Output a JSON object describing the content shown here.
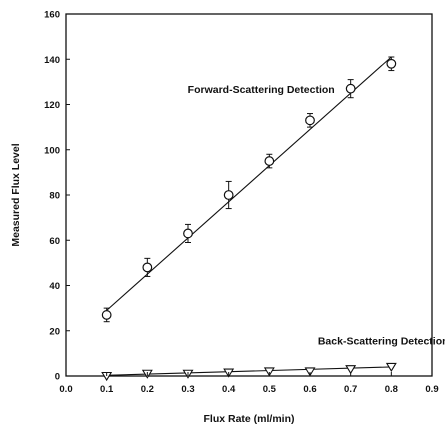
{
  "chart_data": {
    "type": "scatter",
    "xlabel": "Flux Rate (ml/min)",
    "ylabel": "Measured Flux Level",
    "xlim": [
      0.0,
      0.9
    ],
    "ylim": [
      0,
      160
    ],
    "xticks": [
      "0.0",
      "0.1",
      "0.2",
      "0.3",
      "0.4",
      "0.5",
      "0.6",
      "0.7",
      "0.8",
      "0.9"
    ],
    "yticks": [
      "0",
      "20",
      "40",
      "60",
      "80",
      "100",
      "120",
      "140",
      "160"
    ],
    "grid": false,
    "legend": "none",
    "series": [
      {
        "marker": "circle",
        "fit_line": {
          "x": [
            0.1,
            0.8
          ],
          "y": [
            29,
            141
          ]
        },
        "points": [
          {
            "x": 0.1,
            "y": 27,
            "err": 3
          },
          {
            "x": 0.2,
            "y": 48,
            "err": 4
          },
          {
            "x": 0.3,
            "y": 63,
            "err": 4
          },
          {
            "x": 0.4,
            "y": 80,
            "err": 6
          },
          {
            "x": 0.5,
            "y": 95,
            "err": 3
          },
          {
            "x": 0.6,
            "y": 113,
            "err": 3
          },
          {
            "x": 0.7,
            "y": 127,
            "err": 4
          },
          {
            "x": 0.8,
            "y": 138,
            "err": 3
          }
        ]
      },
      {
        "marker": "triangle-down",
        "fit_line": {
          "x": [
            0.1,
            0.8
          ],
          "y": [
            0.3,
            4
          ]
        },
        "points": [
          {
            "x": 0.1,
            "y": 0,
            "err": 0
          },
          {
            "x": 0.2,
            "y": 1,
            "err": 0
          },
          {
            "x": 0.3,
            "y": 1,
            "err": 0
          },
          {
            "x": 0.4,
            "y": 1.5,
            "err": 0
          },
          {
            "x": 0.5,
            "y": 2,
            "err": 0
          },
          {
            "x": 0.6,
            "y": 2,
            "err": 0
          },
          {
            "x": 0.7,
            "y": 3,
            "err": 0
          },
          {
            "x": 0.8,
            "y": 4,
            "err": 0
          }
        ]
      }
    ],
    "annotations": [
      {
        "text": "Forward-Scattering Detection",
        "x": 0.48,
        "y": 125
      },
      {
        "text": "Back-Scattering Detection",
        "x": 0.78,
        "y": 14
      }
    ]
  }
}
